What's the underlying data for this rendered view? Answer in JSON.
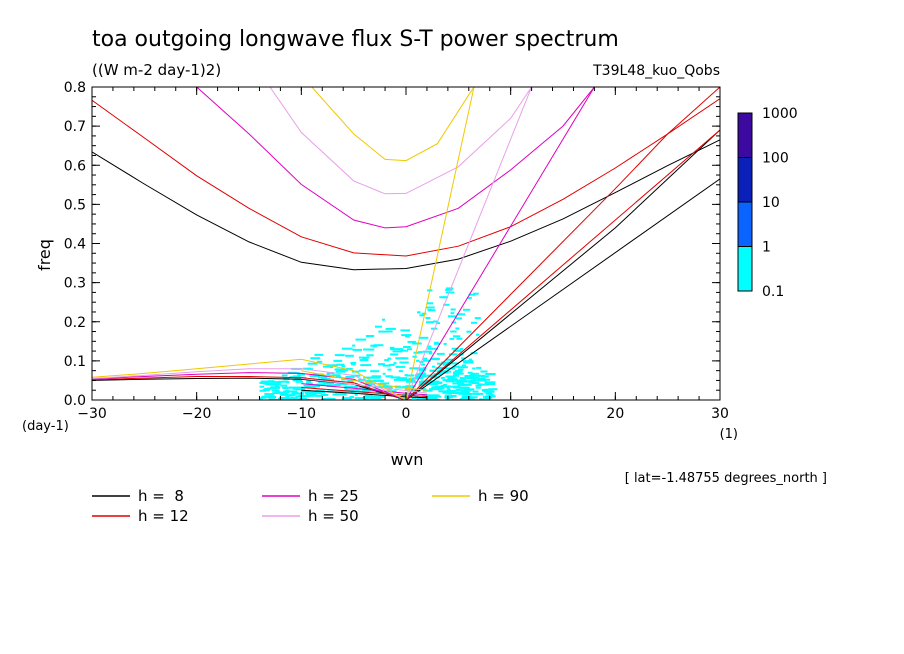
{
  "chart_data": {
    "type": "line",
    "title": "toa outgoing longwave flux S-T power spectrum",
    "subtitle": "((W m-2 day-1)2)",
    "run_label": "T39L48_kuo_Qobs",
    "xlabel": "wvn",
    "ylabel": "freq",
    "x_unit": "(1)",
    "y_unit": "(day-1)",
    "footnote": "[ lat=-1.48755 degrees_north ]",
    "xlim": [
      -30,
      30
    ],
    "ylim": [
      0,
      0.8
    ],
    "x_ticks": [
      -30,
      -20,
      -10,
      0,
      10,
      20,
      30
    ],
    "y_ticks": [
      0.0,
      0.1,
      0.2,
      0.3,
      0.4,
      0.5,
      0.6,
      0.7,
      0.8
    ],
    "grid": false,
    "colorbar": {
      "labels": [
        "0.1",
        "1",
        "10",
        "100",
        "1000"
      ],
      "colors": [
        "#00ffff",
        "#0a64ff",
        "#0a20b8",
        "#3c0aa0"
      ]
    },
    "legend": [
      {
        "label": "h =  8",
        "color": "#000000"
      },
      {
        "label": "h = 12",
        "color": "#e00000"
      },
      {
        "label": "h = 25",
        "color": "#e000c0"
      },
      {
        "label": "h = 50",
        "color": "#e8a0e8"
      },
      {
        "label": "h = 90",
        "color": "#f0c800"
      }
    ],
    "series": [
      {
        "name": "h =  8",
        "color": "#000000",
        "waves": {
          "n1_eig": [
            [
              -30,
              0.634
            ],
            [
              -25,
              0.552
            ],
            [
              -20,
              0.473
            ],
            [
              -15,
              0.404
            ],
            [
              -10,
              0.352
            ],
            [
              -5,
              0.333
            ],
            [
              0,
              0.336
            ],
            [
              5,
              0.36
            ],
            [
              10,
              0.406
            ],
            [
              15,
              0.463
            ],
            [
              20,
              0.53
            ],
            [
              25,
              0.599
            ],
            [
              30,
              0.665
            ]
          ],
          "rossby": [
            [
              -30,
              0.05
            ],
            [
              -25,
              0.053
            ],
            [
              -20,
              0.055
            ],
            [
              -15,
              0.056
            ],
            [
              -10,
              0.053
            ],
            [
              -5,
              0.04
            ],
            [
              0,
              0
            ]
          ],
          "kelvin": [
            [
              0,
              0
            ],
            [
              30,
              0.565
            ]
          ],
          "mrg": [
            [
              -10,
              0.025
            ],
            [
              -5,
              0.017
            ],
            [
              0,
              0.008
            ],
            [
              2,
              0.006
            ]
          ],
          "ig0": [
            [
              0,
              0
            ],
            [
              10,
              0.22
            ],
            [
              20,
              0.44
            ],
            [
              30,
              0.69
            ]
          ]
        }
      },
      {
        "name": "h = 12",
        "color": "#e00000",
        "waves": {
          "n1_eig": [
            [
              -30,
              0.766
            ],
            [
              -25,
              0.67
            ],
            [
              -20,
              0.573
            ],
            [
              -15,
              0.49
            ],
            [
              -10,
              0.417
            ],
            [
              -5,
              0.376
            ],
            [
              0,
              0.368
            ],
            [
              5,
              0.393
            ],
            [
              10,
              0.443
            ],
            [
              15,
              0.513
            ],
            [
              20,
              0.593
            ],
            [
              25,
              0.68
            ],
            [
              30,
              0.77
            ]
          ],
          "rossby": [
            [
              -30,
              0.052
            ],
            [
              -25,
              0.056
            ],
            [
              -20,
              0.06
            ],
            [
              -15,
              0.06
            ],
            [
              -10,
              0.057
            ],
            [
              -5,
              0.044
            ],
            [
              0,
              0
            ]
          ],
          "kelvin": [
            [
              0,
              0
            ],
            [
              30,
              0.69
            ]
          ],
          "mrg": [
            [
              -10,
              0.032
            ],
            [
              -5,
              0.022
            ],
            [
              0,
              0.012
            ],
            [
              2,
              0.009
            ]
          ],
          "ig0": [
            [
              0,
              0
            ],
            [
              10,
              0.27
            ],
            [
              20,
              0.54
            ],
            [
              25,
              0.68
            ],
            [
              30,
              0.8
            ]
          ]
        }
      },
      {
        "name": "h = 25",
        "color": "#e000c0",
        "waves": {
          "n1_eig": [
            [
              -20,
              0.8
            ],
            [
              -15,
              0.68
            ],
            [
              -10,
              0.551
            ],
            [
              -5,
              0.46
            ],
            [
              -2,
              0.44
            ],
            [
              0,
              0.443
            ],
            [
              5,
              0.49
            ],
            [
              10,
              0.588
            ],
            [
              15,
              0.7
            ],
            [
              18,
              0.8
            ]
          ],
          "rossby": [
            [
              -30,
              0.054
            ],
            [
              -25,
              0.06
            ],
            [
              -20,
              0.066
            ],
            [
              -15,
              0.07
            ],
            [
              -10,
              0.068
            ],
            [
              -5,
              0.053
            ],
            [
              0,
              0
            ]
          ],
          "kelvin": [
            [
              0,
              0
            ],
            [
              18,
              0.8
            ]
          ],
          "mrg": [
            [
              -10,
              0.042
            ],
            [
              -5,
              0.03
            ],
            [
              0,
              0.017
            ],
            [
              2,
              0.013
            ]
          ]
        }
      },
      {
        "name": "h = 50",
        "color": "#e8a0e8",
        "waves": {
          "n1_eig": [
            [
              -13,
              0.8
            ],
            [
              -10,
              0.684
            ],
            [
              -5,
              0.56
            ],
            [
              -2,
              0.527
            ],
            [
              0,
              0.528
            ],
            [
              5,
              0.596
            ],
            [
              10,
              0.72
            ],
            [
              12,
              0.8
            ]
          ],
          "rossby": [
            [
              -30,
              0.055
            ],
            [
              -25,
              0.063
            ],
            [
              -20,
              0.072
            ],
            [
              -15,
              0.08
            ],
            [
              -10,
              0.08
            ],
            [
              -5,
              0.063
            ],
            [
              0,
              0
            ]
          ],
          "kelvin": [
            [
              0,
              0
            ],
            [
              12,
              0.8
            ]
          ],
          "mrg": [
            [
              -10,
              0.055
            ],
            [
              -5,
              0.04
            ],
            [
              0,
              0.024
            ],
            [
              2,
              0.018
            ]
          ]
        }
      },
      {
        "name": "h = 90",
        "color": "#f0c800",
        "waves": {
          "n1_eig": [
            [
              -9,
              0.8
            ],
            [
              -5,
              0.68
            ],
            [
              -2,
              0.615
            ],
            [
              0,
              0.612
            ],
            [
              3,
              0.655
            ],
            [
              6,
              0.78
            ],
            [
              6.5,
              0.8
            ]
          ],
          "rossby": [
            [
              -30,
              0.058
            ],
            [
              -25,
              0.068
            ],
            [
              -20,
              0.08
            ],
            [
              -15,
              0.092
            ],
            [
              -10,
              0.104
            ],
            [
              -5,
              0.075
            ],
            [
              0,
              0
            ]
          ],
          "kelvin": [
            [
              0,
              0
            ],
            [
              6.5,
              0.8
            ]
          ],
          "mrg": [
            [
              -10,
              0.075
            ],
            [
              -5,
              0.05
            ],
            [
              0,
              0.03
            ],
            [
              2,
              0.025
            ]
          ]
        }
      }
    ]
  }
}
